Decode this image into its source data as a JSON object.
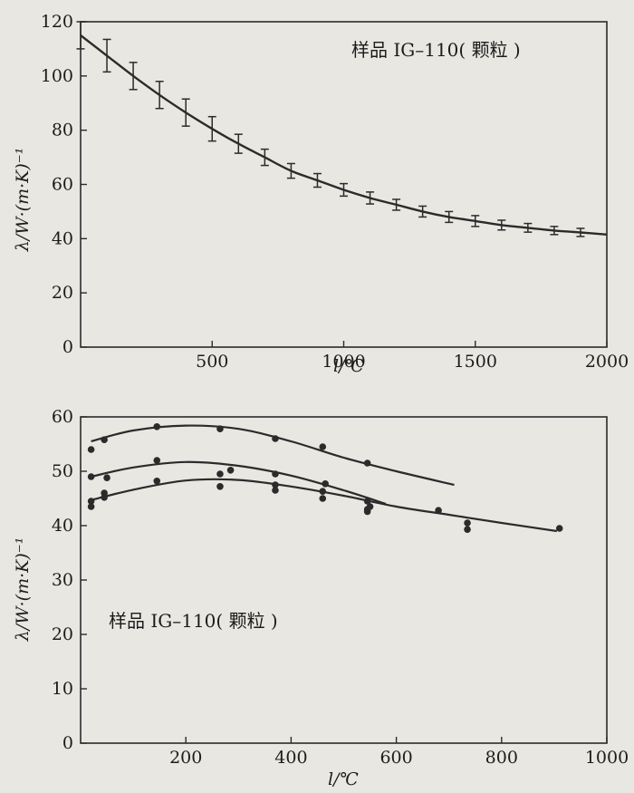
{
  "chart_data": [
    {
      "type": "line",
      "annotation": "样品 IG–110( 颗粒 )",
      "xlabel": "l/℃",
      "ylabel": "λ/W·(m·K)⁻¹",
      "xlim": [
        0,
        2000
      ],
      "ylim": [
        0,
        120
      ],
      "x_ticks": [
        500,
        1000,
        1500,
        2000
      ],
      "x_tick_labels": [
        "500",
        "1000",
        "1500",
        "2000"
      ],
      "y_ticks": [
        0,
        20,
        40,
        60,
        80,
        100,
        120
      ],
      "y_tick_labels": [
        "0",
        "20",
        "40",
        "60",
        "80",
        "100",
        "120"
      ],
      "grid": false,
      "series": [
        {
          "x": [
            0,
            100,
            200,
            300,
            400,
            500,
            600,
            700,
            800,
            900,
            1000,
            1100,
            1200,
            1300,
            1400,
            1500,
            1600,
            1700,
            1800,
            1900,
            2000
          ],
          "y": [
            115,
            107.5,
            100,
            93,
            86.5,
            80.5,
            75,
            70,
            65,
            61.5,
            58,
            55,
            52.5,
            50,
            48,
            46.5,
            45,
            44,
            43,
            42.3,
            41.5
          ]
        }
      ],
      "error_bars": {
        "x": [
          0,
          100,
          200,
          300,
          400,
          500,
          600,
          700,
          800,
          900,
          1000,
          1100,
          1200,
          1300,
          1400,
          1500,
          1600,
          1700,
          1800,
          1900
        ],
        "y": [
          115,
          107.5,
          100,
          93,
          86.5,
          80.5,
          75,
          70,
          65,
          61.5,
          58,
          55,
          52.5,
          50,
          48,
          46.5,
          45,
          44,
          43,
          42.3
        ],
        "err": [
          5,
          6,
          5,
          5,
          5,
          4.5,
          3.5,
          3,
          2.7,
          2.5,
          2.3,
          2.2,
          2,
          2,
          2,
          2,
          1.8,
          1.6,
          1.5,
          1.5
        ]
      }
    },
    {
      "type": "scatter",
      "annotation": "样品 IG–110( 颗粒 )",
      "xlabel": "l/℃",
      "ylabel": "λ/W·(m·K)⁻¹",
      "xlim": [
        0,
        1000
      ],
      "ylim": [
        0,
        60
      ],
      "x_ticks": [
        200,
        400,
        600,
        800,
        1000
      ],
      "x_tick_labels": [
        "200",
        "400",
        "600",
        "800",
        "1000"
      ],
      "y_ticks": [
        0,
        10,
        20,
        30,
        40,
        50,
        60
      ],
      "y_tick_labels": [
        "0",
        "10",
        "20",
        "30",
        "40",
        "50",
        "60"
      ],
      "grid": false,
      "series": [
        {
          "points": [
            [
              20,
              54
            ],
            [
              45,
              55.8
            ],
            [
              145,
              58.2
            ],
            [
              265,
              57.8
            ],
            [
              370,
              56
            ],
            [
              460,
              54.5
            ],
            [
              545,
              51.5
            ]
          ],
          "fit": [
            [
              20,
              55.5
            ],
            [
              100,
              57.5
            ],
            [
              200,
              58.4
            ],
            [
              300,
              57.8
            ],
            [
              400,
              55.5
            ],
            [
              500,
              52.5
            ],
            [
              600,
              50
            ],
            [
              710,
              47.5
            ]
          ]
        },
        {
          "points": [
            [
              20,
              49
            ],
            [
              50,
              48.8
            ],
            [
              145,
              52
            ],
            [
              285,
              50.2
            ],
            [
              370,
              49.5
            ],
            [
              465,
              47.7
            ],
            [
              545,
              44.5
            ]
          ],
          "fit": [
            [
              20,
              49
            ],
            [
              100,
              50.7
            ],
            [
              200,
              51.7
            ],
            [
              300,
              51
            ],
            [
              400,
              49.2
            ],
            [
              500,
              46.5
            ],
            [
              580,
              44
            ]
          ]
        },
        {
          "points": [
            [
              20,
              44.5
            ],
            [
              20,
              43.5
            ],
            [
              45,
              46
            ],
            [
              45,
              45.2
            ],
            [
              145,
              48.2
            ],
            [
              265,
              49.5
            ],
            [
              265,
              47.2
            ],
            [
              370,
              47.5
            ],
            [
              370,
              46.5
            ],
            [
              460,
              46.3
            ],
            [
              460,
              45
            ],
            [
              545,
              43
            ],
            [
              545,
              42.6
            ],
            [
              550,
              43.5
            ],
            [
              680,
              42.8
            ],
            [
              735,
              40.5
            ],
            [
              735,
              39.3
            ],
            [
              910,
              39.5
            ]
          ],
          "fit": [
            [
              20,
              44.7
            ],
            [
              100,
              46.6
            ],
            [
              200,
              48.3
            ],
            [
              300,
              48.4
            ],
            [
              400,
              47.2
            ],
            [
              500,
              45.5
            ],
            [
              600,
              43.5
            ],
            [
              700,
              42
            ],
            [
              800,
              40.5
            ],
            [
              905,
              39
            ]
          ]
        }
      ]
    }
  ]
}
